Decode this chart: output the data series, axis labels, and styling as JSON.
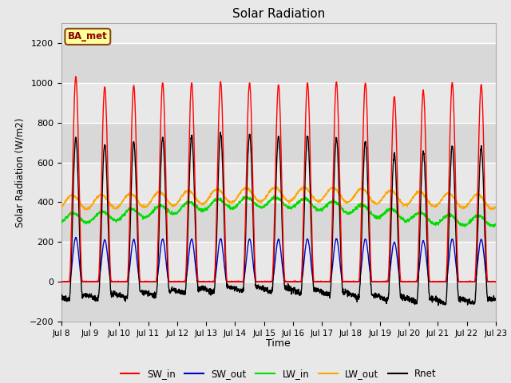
{
  "title": "Solar Radiation",
  "ylabel": "Solar Radiation (W/m2)",
  "xlabel": "Time",
  "ylim": [
    -200,
    1300
  ],
  "yticks": [
    -200,
    0,
    200,
    400,
    600,
    800,
    1000,
    1200
  ],
  "xtick_labels": [
    "Jul 8",
    "Jul 9",
    "Jul 10",
    "Jul 11",
    "Jul 12",
    "Jul 13",
    "Jul 14",
    "Jul 15",
    "Jul 16",
    "Jul 17",
    "Jul 18",
    "Jul 19",
    "Jul 20",
    "Jul 21",
    "Jul 22",
    "Jul 23"
  ],
  "colors": {
    "SW_in": "#ff0000",
    "SW_out": "#0000cc",
    "LW_in": "#00dd00",
    "LW_out": "#ffa500",
    "Rnet": "#000000"
  },
  "legend_label": "BA_met",
  "legend_box_facecolor": "#ffff99",
  "legend_box_edgecolor": "#8b4513",
  "bg_color": "#e8e8e8",
  "plot_bg": "#e8e8e8",
  "grid_color": "#ffffff",
  "SW_in_peaks": [
    1030,
    980,
    985,
    1000,
    1000,
    1005,
    1000,
    990,
    1000,
    1005,
    1000,
    930,
    960,
    1000,
    990
  ],
  "days": 15
}
